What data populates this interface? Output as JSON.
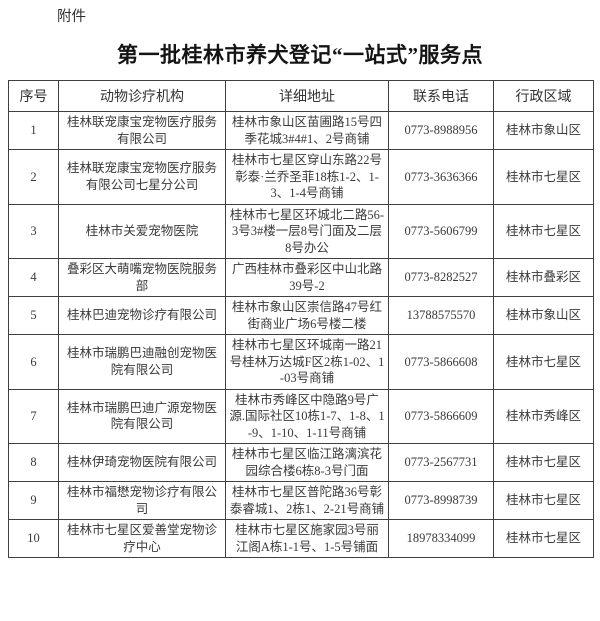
{
  "doc": {
    "attachment_label": "附件",
    "title": "第一批桂林市养犬登记“一站式”服务点"
  },
  "table": {
    "headers": [
      "序号",
      "动物诊疗机构",
      "详细地址",
      "联系电话",
      "行政区域"
    ],
    "rows": [
      {
        "no": "1",
        "name": "桂林联宠康宝宠物医疗服务有限公司",
        "address": "桂林市象山区苗圃路15号四季花城3#4#1、2号商铺",
        "phone": "0773-8988956",
        "district": "桂林市象山区"
      },
      {
        "no": "2",
        "name": "桂林联宠康宝宠物医疗服务有限公司七星分公司",
        "address": "桂林市七星区穿山东路22号彰泰·兰乔圣菲18栋1-2、1-3、1-4号商铺",
        "phone": "0773-3636366",
        "district": "桂林市七星区"
      },
      {
        "no": "3",
        "name": "桂林市关爱宠物医院",
        "address": "桂林市七星区环城北二路56-3号3#楼一层8号门面及二层8号办公",
        "phone": "0773-5606799",
        "district": "桂林市七星区"
      },
      {
        "no": "4",
        "name": "叠彩区大萌嘴宠物医院服务部",
        "address": "广西桂林市叠彩区中山北路39号-2",
        "phone": "0773-8282527",
        "district": "桂林市叠彩区"
      },
      {
        "no": "5",
        "name": "桂林巴迪宠物诊疗有限公司",
        "address": "桂林市象山区崇信路47号红街商业广场6号楼二楼",
        "phone": "13788575570",
        "district": "桂林市象山区"
      },
      {
        "no": "6",
        "name": "桂林市瑞鹏巴迪融创宠物医院有限公司",
        "address": "桂林市七星区环城南一路21号桂林万达城F区2栋1-02、1-03号商铺",
        "phone": "0773-5866608",
        "district": "桂林市七星区"
      },
      {
        "no": "7",
        "name": "桂林市瑞鹏巴迪广源宠物医院有限公司",
        "address": "桂林市秀峰区中隐路9号广源.国际社区10栋1-7、1-8、1-9、1-10、1-11号商铺",
        "phone": "0773-5866609",
        "district": "桂林市秀峰区"
      },
      {
        "no": "8",
        "name": "桂林伊琦宠物医院有限公司",
        "address": "桂林市七星区临江路漓滨花园综合楼6栋8-3号门面",
        "phone": "0773-2567731",
        "district": "桂林市七星区"
      },
      {
        "no": "9",
        "name": "桂林市福懋宠物诊疗有限公司",
        "address": "桂林市七星区普陀路36号彰泰睿城1、2栋1、2-21号商铺",
        "phone": "0773-8998739",
        "district": "桂林市七星区"
      },
      {
        "no": "10",
        "name": "桂林市七星区爱善堂宠物诊疗中心",
        "address": "桂林市七星区施家园3号丽江阁A栋1-1号、1-5号铺面",
        "phone": "18978334099",
        "district": "桂林市七星区"
      }
    ]
  }
}
